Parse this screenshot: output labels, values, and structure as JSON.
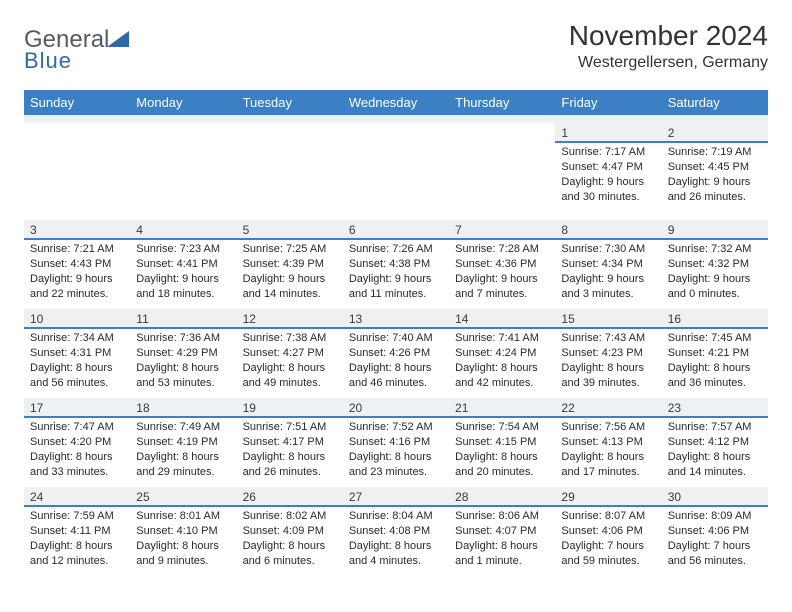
{
  "brand": {
    "name_top": "General",
    "name_bottom": "Blue",
    "gray": "#555a63",
    "blue": "#3b7fc4"
  },
  "title": "November 2024",
  "location": "Westergellersen, Germany",
  "columns": [
    "Sunday",
    "Monday",
    "Tuesday",
    "Wednesday",
    "Thursday",
    "Friday",
    "Saturday"
  ],
  "styles": {
    "header_bg": "#3b7fc4",
    "header_fg": "#ffffff",
    "date_row_bg": "#eef0f2",
    "date_underline": "#3b7fc4",
    "page_bg": "#ffffff",
    "text": "#2a2a2a",
    "title_fontsize": 28,
    "subtitle_fontsize": 16,
    "th_fontsize": 13,
    "date_fontsize": 12,
    "cell_fontsize": 11
  },
  "weeks": [
    [
      null,
      null,
      null,
      null,
      null,
      {
        "date": "1",
        "sunrise": "7:17 AM",
        "sunset": "4:47 PM",
        "daylight": "9 hours and 30 minutes."
      },
      {
        "date": "2",
        "sunrise": "7:19 AM",
        "sunset": "4:45 PM",
        "daylight": "9 hours and 26 minutes."
      }
    ],
    [
      {
        "date": "3",
        "sunrise": "7:21 AM",
        "sunset": "4:43 PM",
        "daylight": "9 hours and 22 minutes."
      },
      {
        "date": "4",
        "sunrise": "7:23 AM",
        "sunset": "4:41 PM",
        "daylight": "9 hours and 18 minutes."
      },
      {
        "date": "5",
        "sunrise": "7:25 AM",
        "sunset": "4:39 PM",
        "daylight": "9 hours and 14 minutes."
      },
      {
        "date": "6",
        "sunrise": "7:26 AM",
        "sunset": "4:38 PM",
        "daylight": "9 hours and 11 minutes."
      },
      {
        "date": "7",
        "sunrise": "7:28 AM",
        "sunset": "4:36 PM",
        "daylight": "9 hours and 7 minutes."
      },
      {
        "date": "8",
        "sunrise": "7:30 AM",
        "sunset": "4:34 PM",
        "daylight": "9 hours and 3 minutes."
      },
      {
        "date": "9",
        "sunrise": "7:32 AM",
        "sunset": "4:32 PM",
        "daylight": "9 hours and 0 minutes."
      }
    ],
    [
      {
        "date": "10",
        "sunrise": "7:34 AM",
        "sunset": "4:31 PM",
        "daylight": "8 hours and 56 minutes."
      },
      {
        "date": "11",
        "sunrise": "7:36 AM",
        "sunset": "4:29 PM",
        "daylight": "8 hours and 53 minutes."
      },
      {
        "date": "12",
        "sunrise": "7:38 AM",
        "sunset": "4:27 PM",
        "daylight": "8 hours and 49 minutes."
      },
      {
        "date": "13",
        "sunrise": "7:40 AM",
        "sunset": "4:26 PM",
        "daylight": "8 hours and 46 minutes."
      },
      {
        "date": "14",
        "sunrise": "7:41 AM",
        "sunset": "4:24 PM",
        "daylight": "8 hours and 42 minutes."
      },
      {
        "date": "15",
        "sunrise": "7:43 AM",
        "sunset": "4:23 PM",
        "daylight": "8 hours and 39 minutes."
      },
      {
        "date": "16",
        "sunrise": "7:45 AM",
        "sunset": "4:21 PM",
        "daylight": "8 hours and 36 minutes."
      }
    ],
    [
      {
        "date": "17",
        "sunrise": "7:47 AM",
        "sunset": "4:20 PM",
        "daylight": "8 hours and 33 minutes."
      },
      {
        "date": "18",
        "sunrise": "7:49 AM",
        "sunset": "4:19 PM",
        "daylight": "8 hours and 29 minutes."
      },
      {
        "date": "19",
        "sunrise": "7:51 AM",
        "sunset": "4:17 PM",
        "daylight": "8 hours and 26 minutes."
      },
      {
        "date": "20",
        "sunrise": "7:52 AM",
        "sunset": "4:16 PM",
        "daylight": "8 hours and 23 minutes."
      },
      {
        "date": "21",
        "sunrise": "7:54 AM",
        "sunset": "4:15 PM",
        "daylight": "8 hours and 20 minutes."
      },
      {
        "date": "22",
        "sunrise": "7:56 AM",
        "sunset": "4:13 PM",
        "daylight": "8 hours and 17 minutes."
      },
      {
        "date": "23",
        "sunrise": "7:57 AM",
        "sunset": "4:12 PM",
        "daylight": "8 hours and 14 minutes."
      }
    ],
    [
      {
        "date": "24",
        "sunrise": "7:59 AM",
        "sunset": "4:11 PM",
        "daylight": "8 hours and 12 minutes."
      },
      {
        "date": "25",
        "sunrise": "8:01 AM",
        "sunset": "4:10 PM",
        "daylight": "8 hours and 9 minutes."
      },
      {
        "date": "26",
        "sunrise": "8:02 AM",
        "sunset": "4:09 PM",
        "daylight": "8 hours and 6 minutes."
      },
      {
        "date": "27",
        "sunrise": "8:04 AM",
        "sunset": "4:08 PM",
        "daylight": "8 hours and 4 minutes."
      },
      {
        "date": "28",
        "sunrise": "8:06 AM",
        "sunset": "4:07 PM",
        "daylight": "8 hours and 1 minute."
      },
      {
        "date": "29",
        "sunrise": "8:07 AM",
        "sunset": "4:06 PM",
        "daylight": "7 hours and 59 minutes."
      },
      {
        "date": "30",
        "sunrise": "8:09 AM",
        "sunset": "4:06 PM",
        "daylight": "7 hours and 56 minutes."
      }
    ]
  ],
  "labels": {
    "sunrise": "Sunrise:",
    "sunset": "Sunset:",
    "daylight": "Daylight:"
  }
}
